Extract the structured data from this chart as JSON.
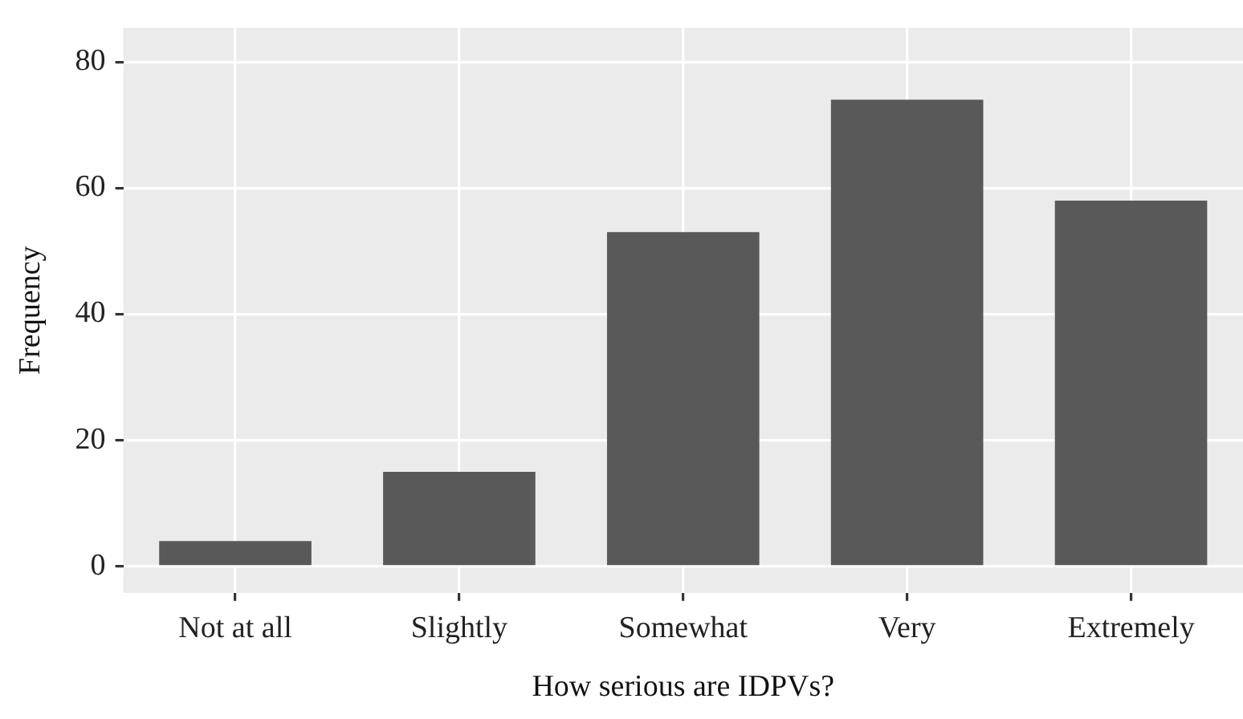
{
  "chart_data": {
    "type": "bar",
    "xlabel": "How serious are IDPVs?",
    "ylabel": "Frequency",
    "categories": [
      "Not at all",
      "Slightly",
      "Somewhat",
      "Very",
      "Extremely"
    ],
    "values": [
      4,
      15,
      53,
      74,
      58
    ],
    "color": "#595959",
    "ylim": [
      -4.2,
      85.4
    ],
    "yticks": [
      0,
      20,
      40,
      60,
      80
    ],
    "grid": true,
    "legend": false
  }
}
